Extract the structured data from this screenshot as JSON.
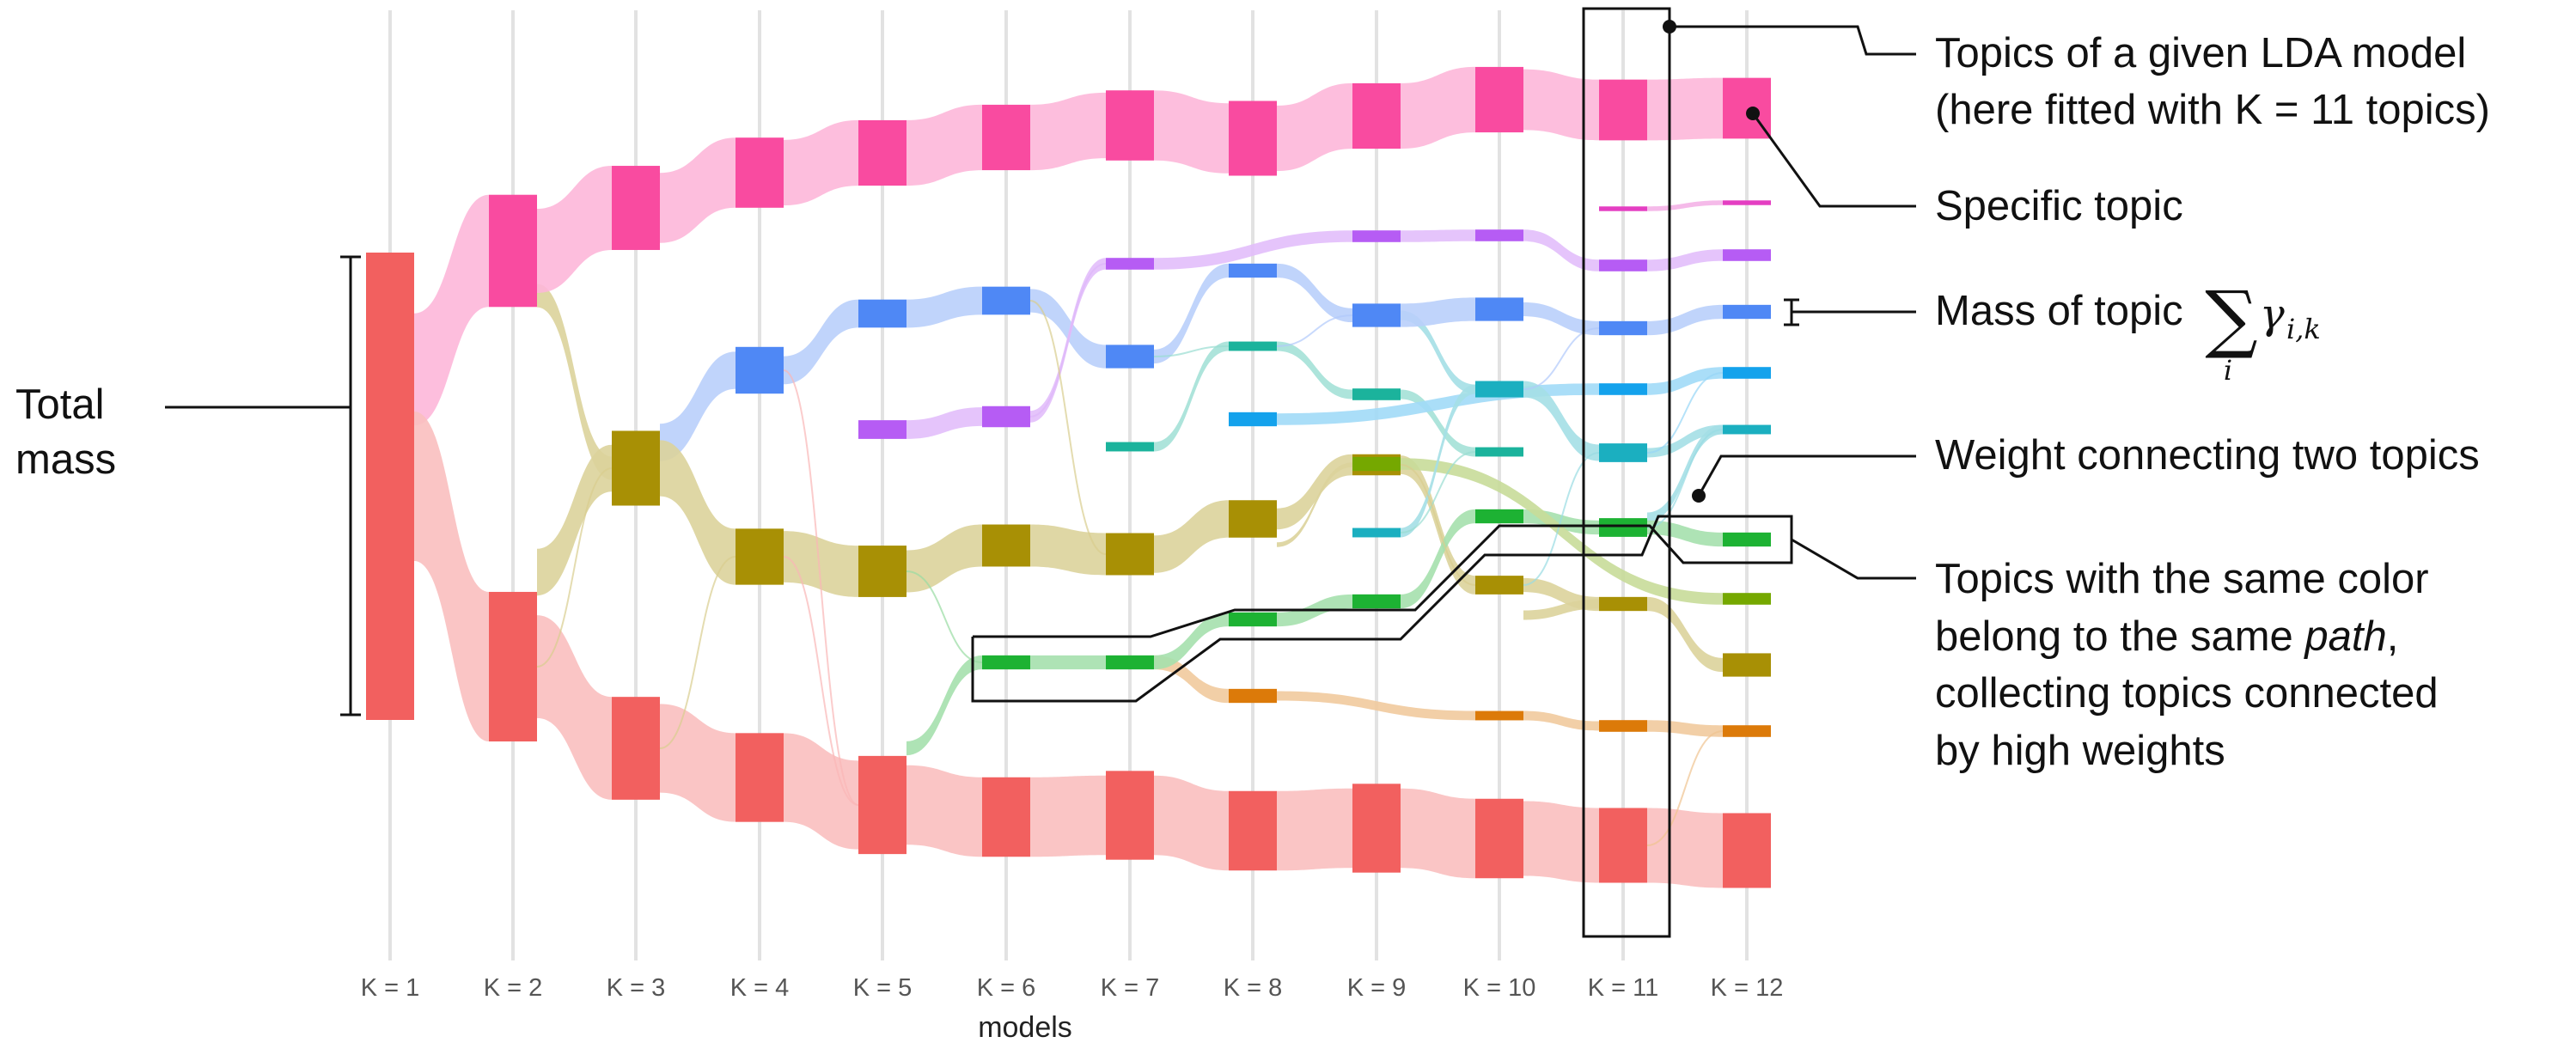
{
  "axis": {
    "title": "models",
    "models": [
      "K = 1",
      "K = 2",
      "K = 3",
      "K = 4",
      "K = 5",
      "K = 6",
      "K = 7",
      "K = 8",
      "K = 9",
      "K = 10",
      "K = 11",
      "K = 12"
    ]
  },
  "colors": {
    "pink": "#f94ba0",
    "salmon": "#f2605f",
    "olive": "#a89005",
    "blue": "#4f88f5",
    "purple": "#b65cf4",
    "teal": "#1bb39c",
    "green": "#1db233",
    "cyan": "#14a2ec",
    "lime": "#75a800",
    "orange": "#dc7a09",
    "magenta": "#e43ec2",
    "teal2": "#1bafc0"
  },
  "annotations": {
    "total_mass": [
      "Total",
      "mass"
    ],
    "topics_of_model": [
      "Topics of a given LDA model",
      "(here fitted with K = 11 topics)"
    ],
    "specific_topic": "Specific topic",
    "mass_of_topic": "Mass of topic",
    "weight_connecting": "Weight connecting two topics",
    "same_color": {
      "line1": "Topics with the same color",
      "line2_prefix": "belong to the same ",
      "line2_italic": "path",
      "line2_suffix": ",",
      "line3": "collecting topics connected",
      "line4": "by high weights"
    }
  },
  "chart_data": {
    "type": "sankey",
    "x": [
      "K = 1",
      "K = 2",
      "K = 3",
      "K = 4",
      "K = 5",
      "K = 6",
      "K = 7",
      "K = 8",
      "K = 9",
      "K = 10",
      "K = 11",
      "K = 12"
    ],
    "xlabel": "models",
    "paths": [
      {
        "color": "pink",
        "nodes": [
          [
            2,
            0.24
          ],
          [
            3,
            0.18
          ],
          [
            4,
            0.15
          ],
          [
            5,
            0.14
          ],
          [
            6,
            0.14
          ],
          [
            7,
            0.15
          ],
          [
            8,
            0.16
          ],
          [
            9,
            0.14
          ],
          [
            10,
            0.14
          ],
          [
            11,
            0.13
          ],
          [
            12,
            0.13
          ]
        ]
      },
      {
        "color": "salmon",
        "nodes": [
          [
            1,
            1.0
          ],
          [
            2,
            0.32
          ],
          [
            3,
            0.22
          ],
          [
            4,
            0.19
          ],
          [
            5,
            0.21
          ],
          [
            6,
            0.17
          ],
          [
            7,
            0.19
          ],
          [
            8,
            0.17
          ],
          [
            9,
            0.19
          ],
          [
            10,
            0.17
          ],
          [
            11,
            0.16
          ],
          [
            12,
            0.16
          ]
        ]
      },
      {
        "color": "olive",
        "nodes": [
          [
            3,
            0.16
          ],
          [
            4,
            0.12
          ],
          [
            5,
            0.11
          ],
          [
            6,
            0.09
          ],
          [
            7,
            0.09
          ],
          [
            8,
            0.08
          ],
          [
            9,
            0.045
          ],
          [
            10,
            0.04
          ],
          [
            11,
            0.03
          ],
          [
            12,
            0.05
          ]
        ]
      },
      {
        "color": "blue",
        "nodes": [
          [
            4,
            0.1
          ],
          [
            5,
            0.06
          ],
          [
            6,
            0.06
          ],
          [
            7,
            0.05
          ],
          [
            8,
            0.03
          ],
          [
            9,
            0.05
          ],
          [
            10,
            0.05
          ],
          [
            11,
            0.03
          ],
          [
            12,
            0.03
          ]
        ]
      },
      {
        "color": "purple",
        "nodes": [
          [
            5,
            0.04
          ],
          [
            6,
            0.045
          ],
          [
            7,
            0.025
          ],
          [
            9,
            0.025
          ],
          [
            10,
            0.025
          ],
          [
            11,
            0.025
          ],
          [
            12,
            0.025
          ]
        ]
      },
      {
        "color": "green",
        "nodes": [
          [
            6,
            0.03
          ],
          [
            7,
            0.03
          ],
          [
            8,
            0.03
          ],
          [
            9,
            0.03
          ],
          [
            10,
            0.03
          ],
          [
            11,
            0.04
          ],
          [
            12,
            0.03
          ]
        ]
      },
      {
        "color": "teal",
        "nodes": [
          [
            7,
            0.02
          ],
          [
            8,
            0.02
          ],
          [
            9,
            0.025
          ],
          [
            10,
            0.02
          ]
        ]
      },
      {
        "color": "cyan",
        "nodes": [
          [
            8,
            0.03
          ],
          [
            11,
            0.025
          ],
          [
            12,
            0.025
          ]
        ]
      },
      {
        "color": "orange",
        "nodes": [
          [
            8,
            0.03
          ],
          [
            10,
            0.02
          ],
          [
            11,
            0.025
          ],
          [
            12,
            0.025
          ]
        ]
      },
      {
        "color": "lime",
        "nodes": [
          [
            9,
            0.03
          ],
          [
            12,
            0.025
          ]
        ]
      },
      {
        "color": "teal2",
        "nodes": [
          [
            9,
            0.02
          ],
          [
            10,
            0.035
          ],
          [
            11,
            0.04
          ],
          [
            12,
            0.02
          ]
        ]
      },
      {
        "color": "magenta",
        "nodes": [
          [
            11,
            0.01
          ],
          [
            12,
            0.01
          ]
        ]
      }
    ]
  }
}
